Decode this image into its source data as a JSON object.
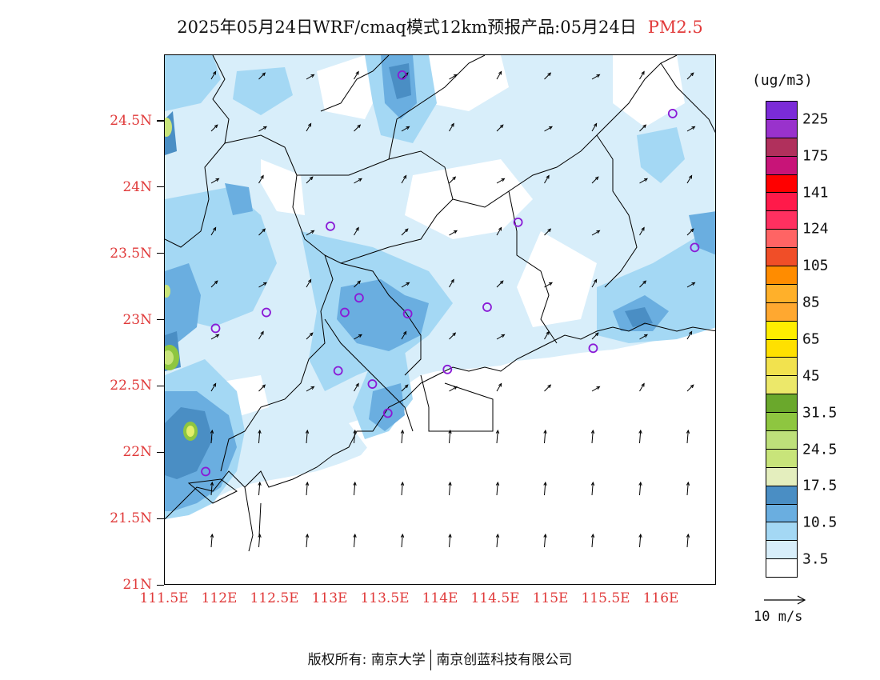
{
  "title": {
    "main": "2025年05月24日WRF/cmaq模式12km预报产品:05月24日",
    "species": "PM2.5"
  },
  "map": {
    "lon_range": [
      111.5,
      116.5
    ],
    "lat_range": [
      21.0,
      25.0
    ],
    "lat_labels": [
      {
        "lat": 24.5,
        "text": "24.5N"
      },
      {
        "lat": 24.0,
        "text": "24N"
      },
      {
        "lat": 23.5,
        "text": "23.5N"
      },
      {
        "lat": 23.0,
        "text": "23N"
      },
      {
        "lat": 22.5,
        "text": "22.5N"
      },
      {
        "lat": 22.0,
        "text": "22N"
      },
      {
        "lat": 21.5,
        "text": "21.5N"
      },
      {
        "lat": 21.0,
        "text": "21N"
      }
    ],
    "lon_labels": [
      {
        "lon": 111.5,
        "text": "111.5E"
      },
      {
        "lon": 112.0,
        "text": "112E"
      },
      {
        "lon": 112.5,
        "text": "112.5E"
      },
      {
        "lon": 113.0,
        "text": "113E"
      },
      {
        "lon": 113.5,
        "text": "113.5E"
      },
      {
        "lon": 114.0,
        "text": "114E"
      },
      {
        "lon": 114.5,
        "text": "114.5E"
      },
      {
        "lon": 115.0,
        "text": "115E"
      },
      {
        "lon": 115.5,
        "text": "115.5E"
      },
      {
        "lon": 116.0,
        "text": "116E"
      }
    ],
    "stations": [
      [
        113.65,
        24.85
      ],
      [
        116.1,
        24.56
      ],
      [
        113.0,
        23.71
      ],
      [
        114.7,
        23.74
      ],
      [
        116.3,
        23.55
      ],
      [
        112.42,
        23.06
      ],
      [
        113.13,
        23.06
      ],
      [
        113.26,
        23.17
      ],
      [
        113.7,
        23.05
      ],
      [
        114.42,
        23.1
      ],
      [
        111.96,
        22.94
      ],
      [
        113.07,
        22.62
      ],
      [
        113.38,
        22.52
      ],
      [
        114.06,
        22.63
      ],
      [
        113.52,
        22.3
      ],
      [
        115.38,
        22.79
      ],
      [
        111.87,
        21.86
      ]
    ]
  },
  "colorbar": {
    "unit": "(ug/m3)",
    "colors": [
      "#7b2bd8",
      "#9932cc",
      "#b0305c",
      "#c81478",
      "#ff0000",
      "#ff1a4a",
      "#ff3060",
      "#ff6464",
      "#f04e28",
      "#ff8c00",
      "#ffb02a",
      "#ffa830",
      "#ffee00",
      "#ffe000",
      "#f2e24e",
      "#ece86a",
      "#6aa82c",
      "#8ec640",
      "#bee07a",
      "#c8e47a",
      "#e4eebe",
      "#4a8ec4",
      "#6aaee0",
      "#a4d8f4",
      "#d8eefa",
      "#ffffff"
    ],
    "labels": [
      {
        "index": 1,
        "text": "225"
      },
      {
        "index": 3,
        "text": "175"
      },
      {
        "index": 5,
        "text": "141"
      },
      {
        "index": 7,
        "text": "124"
      },
      {
        "index": 9,
        "text": "105"
      },
      {
        "index": 11,
        "text": "85"
      },
      {
        "index": 13,
        "text": "65"
      },
      {
        "index": 15,
        "text": "45"
      },
      {
        "index": 17,
        "text": "31.5"
      },
      {
        "index": 19,
        "text": "24.5"
      },
      {
        "index": 21,
        "text": "17.5"
      },
      {
        "index": 23,
        "text": "10.5"
      },
      {
        "index": 25,
        "text": "3.5"
      }
    ]
  },
  "wind_reference": "10 m/s",
  "footer": {
    "left": "版权所有: 南京大学",
    "right": "南京创蓝科技有限公司"
  }
}
